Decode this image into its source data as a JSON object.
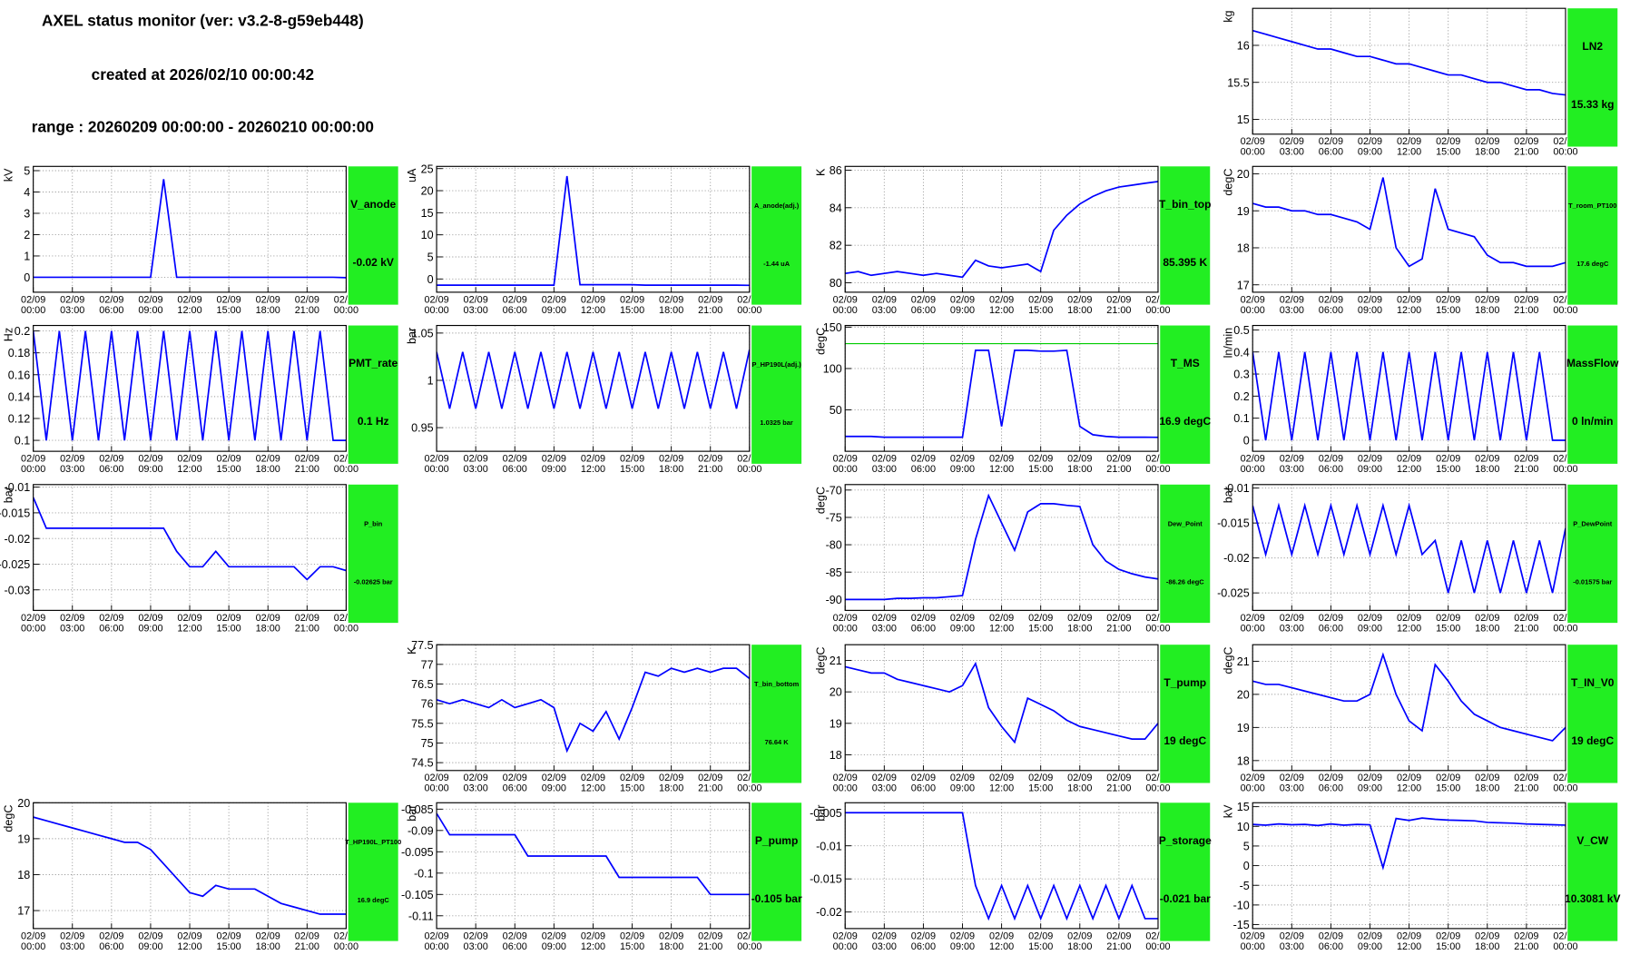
{
  "header": {
    "title": "AXEL status monitor (ver: v3.2-8-g59eb448)",
    "created": "created at 2026/02/10 00:00:42",
    "range": "range : 20260209 00:00:00 - 20260210 00:00:00"
  },
  "time_axis": {
    "xlim": [
      0,
      24
    ],
    "x": [
      0,
      1,
      2,
      3,
      4,
      5,
      6,
      7,
      8,
      9,
      10,
      11,
      12,
      13,
      14,
      15,
      16,
      17,
      18,
      19,
      20,
      21,
      22,
      23,
      24
    ],
    "xticks": [
      {
        "value": 0,
        "label": [
          "02/09",
          "00:00"
        ]
      },
      {
        "value": 3,
        "label": [
          "02/09",
          "03:00"
        ]
      },
      {
        "value": 6,
        "label": [
          "02/09",
          "06:00"
        ]
      },
      {
        "value": 9,
        "label": [
          "02/09",
          "09:00"
        ]
      },
      {
        "value": 12,
        "label": [
          "02/09",
          "12:00"
        ]
      },
      {
        "value": 15,
        "label": [
          "02/09",
          "15:00"
        ]
      },
      {
        "value": 18,
        "label": [
          "02/09",
          "18:00"
        ]
      },
      {
        "value": 21,
        "label": [
          "02/09",
          "21:00"
        ]
      },
      {
        "value": 24,
        "label": [
          "02/10",
          "00:00"
        ]
      }
    ],
    "grid": true
  },
  "chart_data": [
    {
      "type": "line",
      "title": "LN2",
      "current": "15.33 kg",
      "ylabel": "kg",
      "ylim": [
        14.8,
        16.5
      ],
      "yticks": [
        15,
        15.5,
        16
      ],
      "color": "#0000ff",
      "values": [
        16.2,
        16.15,
        16.1,
        16.05,
        16.0,
        15.95,
        15.95,
        15.9,
        15.85,
        15.85,
        15.8,
        15.75,
        15.75,
        15.7,
        15.65,
        15.6,
        15.6,
        15.55,
        15.5,
        15.5,
        15.45,
        15.4,
        15.4,
        15.35,
        15.33
      ]
    },
    {
      "type": "line",
      "title": "V_anode",
      "current": "-0.02 kV",
      "ylabel": "kV",
      "ylim": [
        -0.7,
        5.2
      ],
      "yticks": [
        0,
        1,
        2,
        3,
        4,
        5
      ],
      "color": "#0000ff",
      "values": [
        0,
        0,
        0,
        0,
        0,
        0,
        0,
        0,
        0,
        0,
        4.6,
        0,
        0,
        0,
        0,
        0,
        0,
        0,
        0,
        0,
        0,
        0,
        0,
        0,
        -0.02
      ]
    },
    {
      "type": "line",
      "title": "A_anode(adj.)",
      "current": "-1.44 uA",
      "ylabel": "uA",
      "ylim": [
        -3,
        25.5
      ],
      "yticks": [
        0,
        5,
        10,
        15,
        20,
        25
      ],
      "color": "#0000ff",
      "values": [
        -1.4,
        -1.4,
        -1.4,
        -1.4,
        -1.4,
        -1.4,
        -1.4,
        -1.4,
        -1.4,
        -1.4,
        23.3,
        -1.3,
        -1.3,
        -1.3,
        -1.3,
        -1.3,
        -1.4,
        -1.4,
        -1.4,
        -1.4,
        -1.4,
        -1.4,
        -1.4,
        -1.4,
        -1.44
      ]
    },
    {
      "type": "line",
      "title": "T_bin_top",
      "current": "85.395 K",
      "ylabel": "K",
      "ylim": [
        79.5,
        86.2
      ],
      "yticks": [
        80,
        82,
        84,
        86
      ],
      "color": "#0000ff",
      "values": [
        80.5,
        80.6,
        80.4,
        80.5,
        80.6,
        80.5,
        80.4,
        80.5,
        80.4,
        80.3,
        81.2,
        80.9,
        80.8,
        80.9,
        81.0,
        80.6,
        82.8,
        83.6,
        84.2,
        84.6,
        84.9,
        85.1,
        85.2,
        85.3,
        85.395
      ]
    },
    {
      "type": "line",
      "title": "T_room_PT100",
      "current": "17.6 degC",
      "ylabel": "degC",
      "ylim": [
        16.8,
        20.2
      ],
      "yticks": [
        17,
        18,
        19,
        20
      ],
      "color": "#0000ff",
      "values": [
        19.2,
        19.1,
        19.1,
        19.0,
        19.0,
        18.9,
        18.9,
        18.8,
        18.7,
        18.5,
        19.9,
        18.0,
        17.5,
        17.7,
        19.6,
        18.5,
        18.4,
        18.3,
        17.8,
        17.6,
        17.6,
        17.5,
        17.5,
        17.5,
        17.6
      ]
    },
    {
      "type": "line",
      "title": "PMT_rate",
      "current": "0.1 Hz",
      "ylabel": "Hz",
      "ylim": [
        0.09,
        0.205
      ],
      "yticks": [
        0.1,
        0.12,
        0.14,
        0.16,
        0.18,
        0.2
      ],
      "color": "#0000ff",
      "values": [
        0.2,
        0.1,
        0.2,
        0.1,
        0.2,
        0.1,
        0.2,
        0.1,
        0.2,
        0.1,
        0.2,
        0.1,
        0.2,
        0.1,
        0.2,
        0.1,
        0.2,
        0.1,
        0.2,
        0.1,
        0.2,
        0.1,
        0.2,
        0.1,
        0.1
      ]
    },
    {
      "type": "line",
      "title": "P_HP190L(adj.)",
      "current": "1.0325 bar",
      "ylabel": "bar",
      "ylim": [
        0.925,
        1.058
      ],
      "yticks": [
        0.95,
        1,
        1.05
      ],
      "color": "#0000ff",
      "values": [
        1.03,
        0.97,
        1.03,
        0.97,
        1.03,
        0.97,
        1.03,
        0.97,
        1.03,
        0.97,
        1.03,
        0.97,
        1.03,
        0.97,
        1.03,
        0.97,
        1.03,
        0.97,
        1.03,
        0.97,
        1.03,
        0.97,
        1.03,
        0.97,
        1.0325
      ]
    },
    {
      "type": "line",
      "title": "T_MS",
      "current": "16.9 degC",
      "ylabel": "degC",
      "ylim": [
        0,
        152
      ],
      "yticks": [
        50,
        100,
        150
      ],
      "color": "#0000ff",
      "threshold": 130,
      "threshold_color": "#00cc00",
      "values": [
        18,
        18,
        18,
        17,
        17,
        17,
        17,
        17,
        17,
        17,
        122,
        122,
        30,
        122,
        122,
        121,
        121,
        122,
        30,
        20,
        18,
        17,
        17,
        17,
        16.9
      ]
    },
    {
      "type": "line",
      "title": "MassFlow",
      "current": "0 ln/min",
      "ylabel": "ln/min",
      "ylim": [
        -0.05,
        0.52
      ],
      "yticks": [
        0,
        0.1,
        0.2,
        0.3,
        0.4,
        0.5
      ],
      "color": "#0000ff",
      "values": [
        0.4,
        0,
        0.4,
        0,
        0.4,
        0,
        0.4,
        0,
        0.4,
        0,
        0.4,
        0,
        0.4,
        0,
        0.4,
        0,
        0.4,
        0,
        0.4,
        0,
        0.4,
        0,
        0.4,
        0,
        0
      ]
    },
    {
      "type": "line",
      "title": "P_bin",
      "current": "-0.02625 bar",
      "ylabel": "bar",
      "ylim": [
        -0.034,
        -0.0095
      ],
      "yticks": [
        -0.03,
        -0.025,
        -0.02,
        -0.015,
        -0.01
      ],
      "color": "#0000ff",
      "values": [
        -0.012,
        -0.018,
        -0.018,
        -0.018,
        -0.018,
        -0.018,
        -0.018,
        -0.018,
        -0.018,
        -0.018,
        -0.018,
        -0.0225,
        -0.0255,
        -0.0255,
        -0.0225,
        -0.0255,
        -0.0255,
        -0.0255,
        -0.0255,
        -0.0255,
        -0.0255,
        -0.028,
        -0.0255,
        -0.0255,
        -0.02625
      ]
    },
    {
      "type": "line",
      "title": "Dew_Point",
      "current": "-86.26 degC",
      "ylabel": "degC",
      "ylim": [
        -92,
        -69
      ],
      "yticks": [
        -90,
        -85,
        -80,
        -75,
        -70
      ],
      "color": "#0000ff",
      "values": [
        -90,
        -90,
        -90,
        -90,
        -89.8,
        -89.8,
        -89.7,
        -89.7,
        -89.5,
        -89.3,
        -79,
        -71,
        -76,
        -81,
        -74,
        -72.5,
        -72.5,
        -72.8,
        -73,
        -80,
        -83,
        -84.5,
        -85.3,
        -85.9,
        -86.26
      ]
    },
    {
      "type": "line",
      "title": "P_DewPoint",
      "current": "-0.01575 bar",
      "ylabel": "bar",
      "ylim": [
        -0.0275,
        -0.0095
      ],
      "yticks": [
        -0.025,
        -0.02,
        -0.015,
        -0.01
      ],
      "color": "#0000ff",
      "values": [
        -0.0125,
        -0.0195,
        -0.0125,
        -0.0195,
        -0.0125,
        -0.0195,
        -0.0125,
        -0.0195,
        -0.0125,
        -0.0195,
        -0.0125,
        -0.0195,
        -0.0125,
        -0.0195,
        -0.0175,
        -0.025,
        -0.0175,
        -0.025,
        -0.0175,
        -0.025,
        -0.0175,
        -0.025,
        -0.0175,
        -0.025,
        -0.01575
      ]
    },
    {
      "type": "line",
      "title": "T_bin_bottom",
      "current": "76.64 K",
      "ylabel": "K",
      "ylim": [
        74.3,
        77.5
      ],
      "yticks": [
        74.5,
        75,
        75.5,
        76,
        76.5,
        77,
        77.5
      ],
      "color": "#0000ff",
      "values": [
        76.1,
        76.0,
        76.1,
        76.0,
        75.9,
        76.1,
        75.9,
        76.0,
        76.1,
        75.9,
        74.8,
        75.5,
        75.3,
        75.8,
        75.1,
        75.9,
        76.8,
        76.7,
        76.9,
        76.8,
        76.9,
        76.8,
        76.9,
        76.9,
        76.64
      ]
    },
    {
      "type": "line",
      "title": "T_pump",
      "current": "19 degC",
      "ylabel": "degC",
      "ylim": [
        17.5,
        21.5
      ],
      "yticks": [
        18,
        19,
        20,
        21
      ],
      "color": "#0000ff",
      "values": [
        20.8,
        20.7,
        20.6,
        20.6,
        20.4,
        20.3,
        20.2,
        20.1,
        20.0,
        20.2,
        20.9,
        19.5,
        18.9,
        18.4,
        19.8,
        19.6,
        19.4,
        19.1,
        18.9,
        18.8,
        18.7,
        18.6,
        18.5,
        18.5,
        19
      ]
    },
    {
      "type": "line",
      "title": "T_IN_V0",
      "current": "19 degC",
      "ylabel": "degC",
      "ylim": [
        17.7,
        21.5
      ],
      "yticks": [
        18,
        19,
        20,
        21
      ],
      "color": "#0000ff",
      "values": [
        20.4,
        20.3,
        20.3,
        20.2,
        20.1,
        20.0,
        19.9,
        19.8,
        19.8,
        20.0,
        21.2,
        20.0,
        19.2,
        18.9,
        20.9,
        20.4,
        19.8,
        19.4,
        19.2,
        19.0,
        18.9,
        18.8,
        18.7,
        18.6,
        19
      ]
    },
    {
      "type": "line",
      "title": "T_HP190L_PT100",
      "current": "16.9 degC",
      "ylabel": "degC",
      "ylim": [
        16.5,
        20
      ],
      "yticks": [
        17,
        18,
        19,
        20
      ],
      "color": "#0000ff",
      "values": [
        19.6,
        19.5,
        19.4,
        19.3,
        19.2,
        19.1,
        19.0,
        18.9,
        18.9,
        18.7,
        18.3,
        17.9,
        17.5,
        17.4,
        17.7,
        17.6,
        17.6,
        17.6,
        17.4,
        17.2,
        17.1,
        17.0,
        16.9,
        16.9,
        16.9
      ]
    },
    {
      "type": "line",
      "title": "P_pump",
      "current": "-0.105 bar",
      "ylabel": "bar",
      "ylim": [
        -0.113,
        -0.0835
      ],
      "yticks": [
        -0.11,
        -0.105,
        -0.1,
        -0.095,
        -0.09,
        -0.085
      ],
      "color": "#0000ff",
      "values": [
        -0.086,
        -0.091,
        -0.091,
        -0.091,
        -0.091,
        -0.091,
        -0.091,
        -0.096,
        -0.096,
        -0.096,
        -0.096,
        -0.096,
        -0.096,
        -0.096,
        -0.101,
        -0.101,
        -0.101,
        -0.101,
        -0.101,
        -0.101,
        -0.101,
        -0.105,
        -0.105,
        -0.105,
        -0.105
      ]
    },
    {
      "type": "line",
      "title": "P_storage",
      "current": "-0.021 bar",
      "ylabel": "bar",
      "ylim": [
        -0.0225,
        -0.0035
      ],
      "yticks": [
        -0.02,
        -0.015,
        -0.01,
        -0.005
      ],
      "color": "#0000ff",
      "values": [
        -0.005,
        -0.005,
        -0.005,
        -0.005,
        -0.005,
        -0.005,
        -0.005,
        -0.005,
        -0.005,
        -0.005,
        -0.016,
        -0.021,
        -0.016,
        -0.021,
        -0.016,
        -0.021,
        -0.016,
        -0.021,
        -0.016,
        -0.021,
        -0.016,
        -0.021,
        -0.016,
        -0.021,
        -0.021
      ]
    },
    {
      "type": "line",
      "title": "V_CW",
      "current": "10.3081 kV",
      "ylabel": "kV",
      "ylim": [
        -16,
        16
      ],
      "yticks": [
        -15,
        -10,
        -5,
        0,
        5,
        10,
        15
      ],
      "color": "#0000ff",
      "values": [
        10.5,
        10.3,
        10.6,
        10.4,
        10.5,
        10.2,
        10.6,
        10.3,
        10.5,
        10.4,
        -0.5,
        12,
        11.5,
        12.1,
        11.8,
        11.6,
        11.5,
        11.4,
        11,
        10.9,
        10.8,
        10.6,
        10.5,
        10.4,
        10.3081
      ]
    }
  ]
}
